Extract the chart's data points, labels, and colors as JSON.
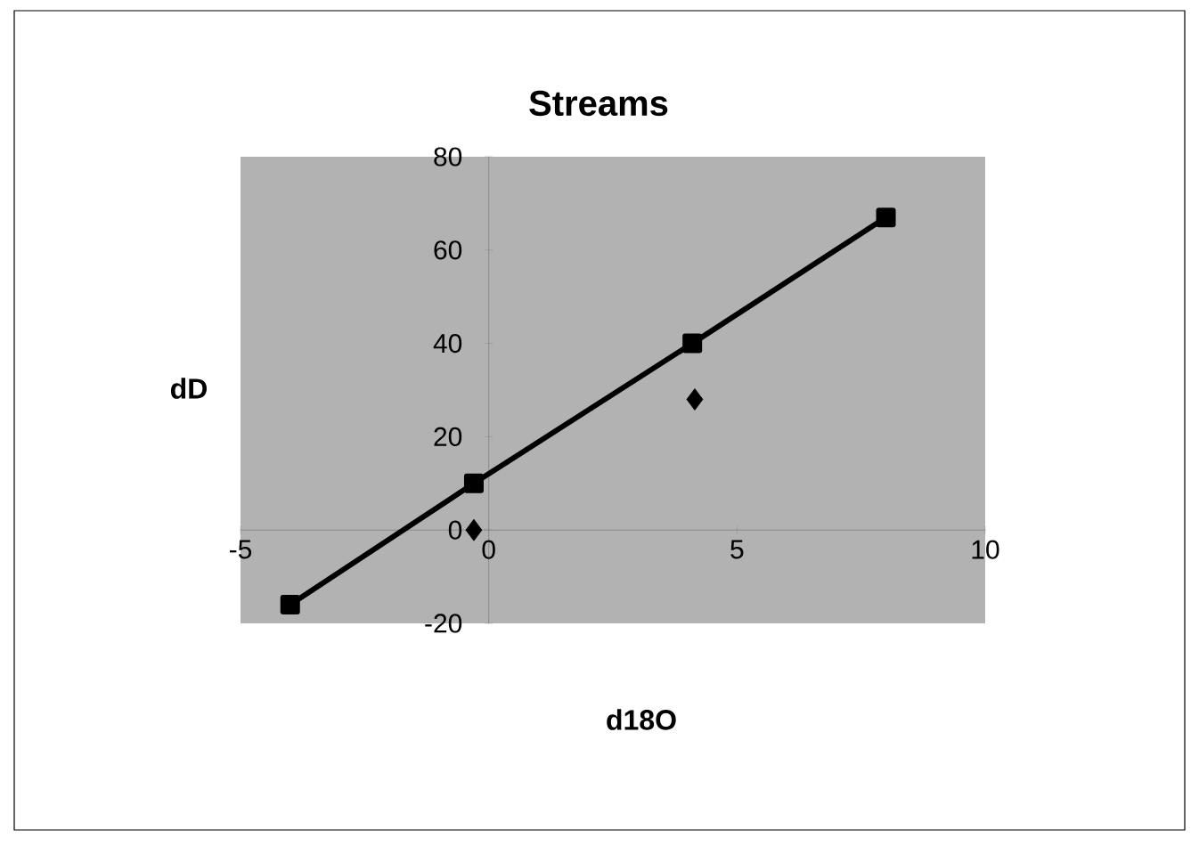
{
  "chart_data": {
    "type": "line",
    "title": "Streams",
    "xlabel": "d18O",
    "ylabel": "dD",
    "xlim": [
      -5,
      10
    ],
    "xticks": [
      -5,
      0,
      5,
      10
    ],
    "ylim": [
      -20,
      80
    ],
    "yticks": [
      -20,
      0,
      20,
      40,
      60,
      80
    ],
    "grid": false,
    "series": [
      {
        "color": "#000000",
        "marker": "square",
        "x": [
          -4,
          -0.3,
          4.1,
          8.0
        ],
        "values": [
          -16,
          10,
          40,
          67
        ]
      },
      {
        "type": "scatter",
        "color": "#000000",
        "marker": "diamond",
        "x": [
          -0.3,
          4.15
        ],
        "values": [
          0,
          28
        ]
      }
    ]
  }
}
